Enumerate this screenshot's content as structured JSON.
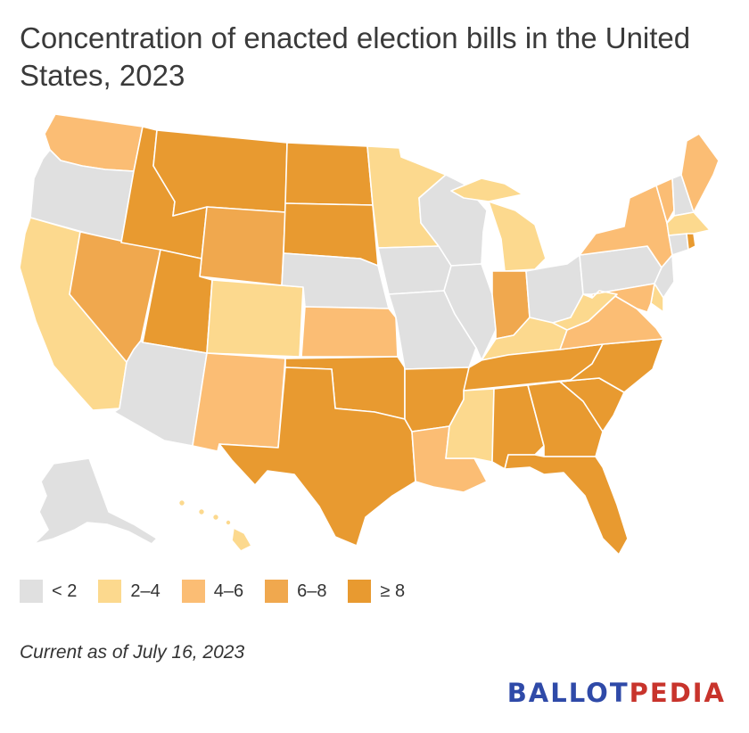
{
  "title": "Concentration of enacted election bills in the United States, 2023",
  "legend": [
    {
      "label": "< 2",
      "color": "#e0e0e0"
    },
    {
      "label": "2–4",
      "color": "#fcd98e"
    },
    {
      "label": "4–6",
      "color": "#fbbd74"
    },
    {
      "label": "6–8",
      "color": "#f0a84e"
    },
    {
      "label": "≥ 8",
      "color": "#e89a30"
    }
  ],
  "footnote": "Current as of July 16, 2023",
  "logo": {
    "part1": "BALLOT",
    "part2": "PEDIA"
  },
  "states": [
    {
      "id": "WA",
      "bin": 2
    },
    {
      "id": "OR",
      "bin": 0
    },
    {
      "id": "CA",
      "bin": 1
    },
    {
      "id": "NV",
      "bin": 3
    },
    {
      "id": "ID",
      "bin": 4
    },
    {
      "id": "MT",
      "bin": 4
    },
    {
      "id": "WY",
      "bin": 3
    },
    {
      "id": "UT",
      "bin": 4
    },
    {
      "id": "AZ",
      "bin": 0
    },
    {
      "id": "CO",
      "bin": 1
    },
    {
      "id": "NM",
      "bin": 2
    },
    {
      "id": "ND",
      "bin": 4
    },
    {
      "id": "SD",
      "bin": 4
    },
    {
      "id": "NE",
      "bin": 0
    },
    {
      "id": "KS",
      "bin": 2
    },
    {
      "id": "OK",
      "bin": 4
    },
    {
      "id": "TX",
      "bin": 4
    },
    {
      "id": "MN",
      "bin": 1
    },
    {
      "id": "IA",
      "bin": 0
    },
    {
      "id": "MO",
      "bin": 0
    },
    {
      "id": "AR",
      "bin": 4
    },
    {
      "id": "LA",
      "bin": 2
    },
    {
      "id": "WI",
      "bin": 0
    },
    {
      "id": "IL",
      "bin": 0
    },
    {
      "id": "MI",
      "bin": 1
    },
    {
      "id": "IN",
      "bin": 3
    },
    {
      "id": "OH",
      "bin": 0
    },
    {
      "id": "KY",
      "bin": 1
    },
    {
      "id": "TN",
      "bin": 4
    },
    {
      "id": "MS",
      "bin": 1
    },
    {
      "id": "AL",
      "bin": 4
    },
    {
      "id": "GA",
      "bin": 4
    },
    {
      "id": "FL",
      "bin": 4
    },
    {
      "id": "SC",
      "bin": 4
    },
    {
      "id": "NC",
      "bin": 4
    },
    {
      "id": "VA",
      "bin": 2
    },
    {
      "id": "WV",
      "bin": 1
    },
    {
      "id": "PA",
      "bin": 0
    },
    {
      "id": "NY",
      "bin": 2
    },
    {
      "id": "VT",
      "bin": 2
    },
    {
      "id": "NH",
      "bin": 0
    },
    {
      "id": "ME",
      "bin": 2
    },
    {
      "id": "MA",
      "bin": 1
    },
    {
      "id": "CT",
      "bin": 0
    },
    {
      "id": "RI",
      "bin": 4
    },
    {
      "id": "NJ",
      "bin": 0
    },
    {
      "id": "DE",
      "bin": 1
    },
    {
      "id": "MD",
      "bin": 2
    },
    {
      "id": "AK",
      "bin": 0
    },
    {
      "id": "HI",
      "bin": 1
    }
  ]
}
